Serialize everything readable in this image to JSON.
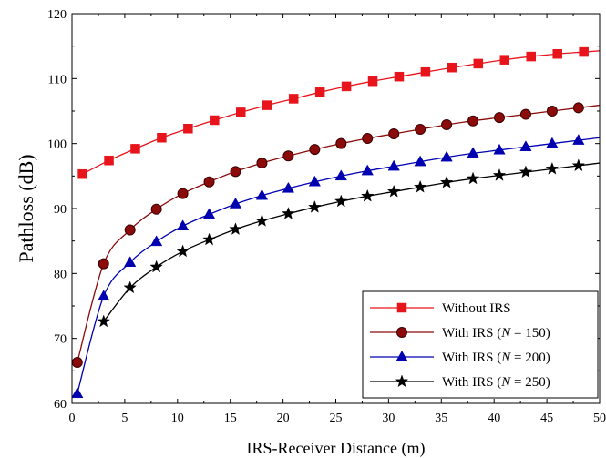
{
  "chart_data": {
    "type": "line",
    "title": "",
    "xlabel": "IRS-Receiver Distance (m)",
    "ylabel": "Pathloss (dB)",
    "xlim": [
      0,
      50
    ],
    "ylim": [
      60,
      120
    ],
    "xticks": [
      0,
      5,
      10,
      15,
      20,
      25,
      30,
      35,
      40,
      45,
      50
    ],
    "yticks": [
      60,
      70,
      80,
      90,
      100,
      110,
      120
    ],
    "grid": false,
    "legend_position": "bottom-right",
    "series": [
      {
        "name": "Without IRS",
        "name_prefix": "Without IRS",
        "name_var": "",
        "name_suffix": "",
        "color": "#e8141c",
        "marker": "square",
        "x": [
          1,
          3.5,
          6,
          8.5,
          11,
          13.5,
          16,
          18.5,
          21,
          23.5,
          26,
          28.5,
          31,
          33.5,
          36,
          38.5,
          41,
          43.5,
          46,
          48.5
        ],
        "y": [
          95.3,
          97.4,
          99.2,
          100.9,
          102.3,
          103.6,
          104.8,
          105.9,
          106.9,
          107.9,
          108.8,
          109.6,
          110.3,
          111.0,
          111.7,
          112.3,
          112.9,
          113.4,
          113.8,
          114.1
        ]
      },
      {
        "name": "With IRS (N = 150)",
        "name_prefix": "With IRS (",
        "name_var": "N",
        "name_suffix": " = 150)",
        "color": "#8b0a0a",
        "marker": "circle",
        "x": [
          0.5,
          3,
          5.5,
          8,
          10.5,
          13,
          15.5,
          18,
          20.5,
          23,
          25.5,
          28,
          30.5,
          33,
          35.5,
          38,
          40.5,
          43,
          45.5,
          48
        ],
        "y": [
          66.3,
          81.5,
          86.7,
          89.9,
          92.3,
          94.1,
          95.7,
          97.0,
          98.1,
          99.1,
          100.0,
          100.8,
          101.5,
          102.2,
          102.9,
          103.5,
          104.0,
          104.5,
          105.0,
          105.5
        ]
      },
      {
        "name": "With IRS (N = 200)",
        "name_prefix": "With IRS (",
        "name_var": "N",
        "name_suffix": " = 200)",
        "color": "#0000b0",
        "marker": "triangle",
        "x": [
          0.5,
          3,
          5.5,
          8,
          10.5,
          13,
          15.5,
          18,
          20.5,
          23,
          25.5,
          28,
          30.5,
          33,
          35.5,
          38,
          40.5,
          43,
          45.5,
          48
        ],
        "y": [
          61.5,
          76.5,
          81.7,
          84.9,
          87.3,
          89.1,
          90.7,
          92.0,
          93.1,
          94.1,
          95.0,
          95.8,
          96.5,
          97.2,
          97.9,
          98.5,
          99.0,
          99.5,
          100.0,
          100.5
        ]
      },
      {
        "name": "With IRS (N = 250)",
        "name_prefix": "With IRS (",
        "name_var": "N",
        "name_suffix": " = 250)",
        "color": "#000000",
        "marker": "star",
        "x": [
          3,
          5.5,
          8,
          10.5,
          13,
          15.5,
          18,
          20.5,
          23,
          25.5,
          28,
          30.5,
          33,
          35.5,
          38,
          40.5,
          43,
          45.5,
          48
        ],
        "y": [
          72.6,
          77.8,
          81.0,
          83.4,
          85.2,
          86.8,
          88.1,
          89.2,
          90.2,
          91.1,
          91.9,
          92.6,
          93.3,
          94.0,
          94.6,
          95.1,
          95.6,
          96.1,
          96.6
        ]
      }
    ]
  }
}
